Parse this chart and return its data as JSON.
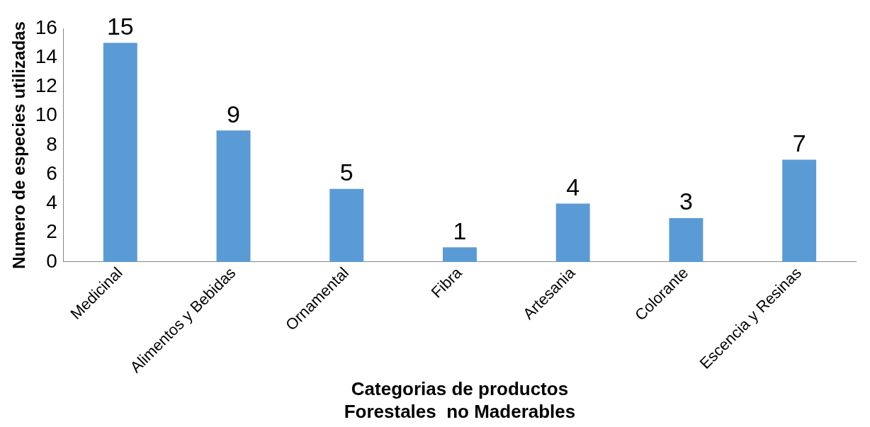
{
  "chart_data": {
    "type": "bar",
    "xlabel": "Categorias de productos\nForestales  no Maderables",
    "ylabel": "Numero de especies utilizadas",
    "categories": [
      "Medicinal",
      "Alimentos y Bebidas",
      "Ornamental",
      "Fibra",
      "Artesania",
      "Colorante",
      "Escencia y Resinas"
    ],
    "values": [
      15,
      9,
      5,
      1,
      4,
      3,
      7
    ],
    "color": "#5b9bd5",
    "ylim": [
      0,
      16
    ],
    "yticks": [
      0,
      2,
      4,
      6,
      8,
      10,
      12,
      14,
      16
    ],
    "grid": false,
    "legend": false,
    "data_labels": true
  }
}
